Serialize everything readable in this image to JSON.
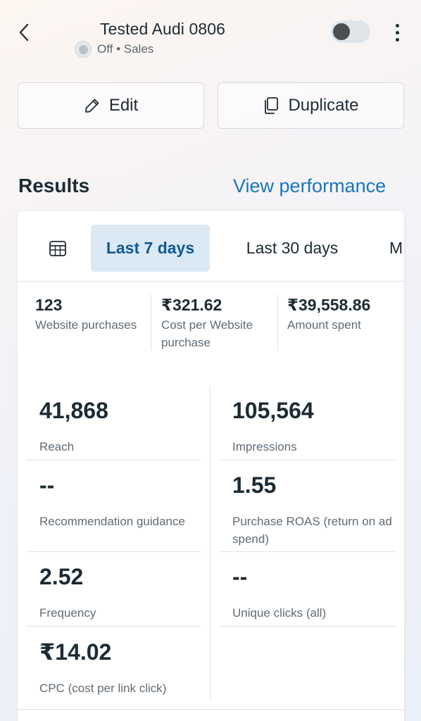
{
  "header": {
    "title": "Tested Audi 0806",
    "status": "Off • Sales"
  },
  "actions": {
    "edit_label": "Edit",
    "duplicate_label": "Duplicate"
  },
  "results": {
    "title": "Results",
    "view_performance": "View performance"
  },
  "tabs": {
    "items": [
      {
        "label": "Last 7 days",
        "selected": true
      },
      {
        "label": "Last 30 days",
        "selected": false
      },
      {
        "label": "M",
        "selected": false
      }
    ]
  },
  "summary": [
    {
      "value": "123",
      "label": "Website purchases"
    },
    {
      "value": "₹321.62",
      "label": "Cost per Website purchase"
    },
    {
      "value": "₹39,558.86",
      "label": "Amount spent"
    }
  ],
  "metrics": [
    {
      "value": "41,868",
      "label": "Reach"
    },
    {
      "value": "105,564",
      "label": "Impressions"
    },
    {
      "value": "--",
      "label": "Recommendation guidance"
    },
    {
      "value": "1.55",
      "label": "Purchase ROAS (return on ad spend)"
    },
    {
      "value": "2.52",
      "label": "Frequency"
    },
    {
      "value": "--",
      "label": "Unique clicks (all)"
    },
    {
      "value": "₹14.02",
      "label": "CPC (cost per link click)"
    }
  ],
  "colors": {
    "accent": "#1a77b9",
    "tab_selected_bg": "#dbe9f4",
    "tab_selected_text": "#0e5a98",
    "text": "#1c2b33",
    "muted": "#606b74"
  }
}
